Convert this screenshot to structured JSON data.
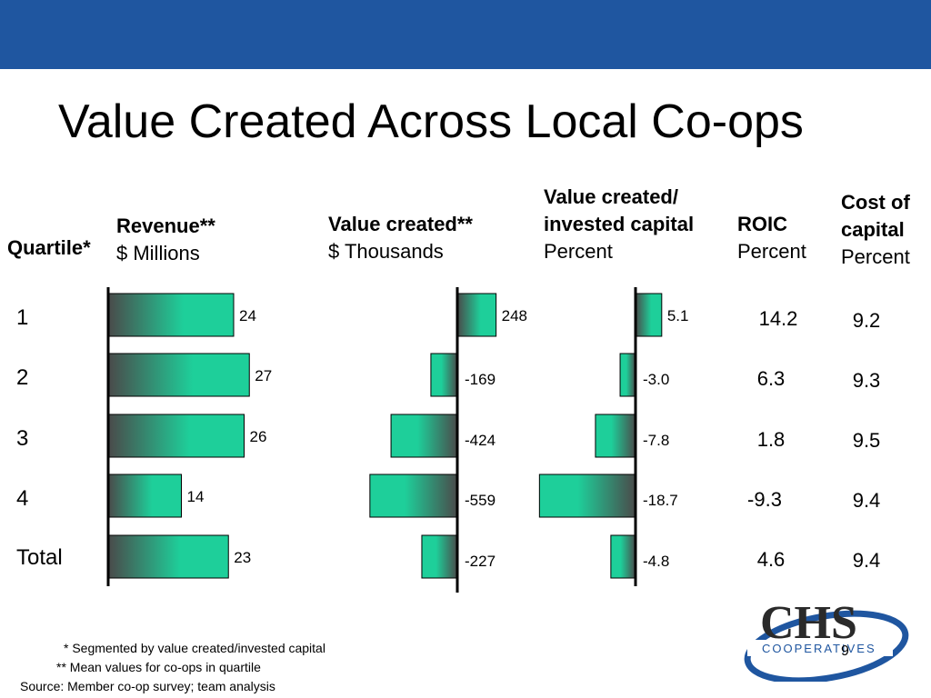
{
  "title": "Value Created Across Local Co-ops",
  "headers": {
    "quartile": "Quartile*",
    "revenue": {
      "name": "Revenue**",
      "unit": "$ Millions"
    },
    "value_created": {
      "name": "Value created**",
      "unit": "$ Thousands"
    },
    "vc_invested": {
      "name1": "Value created/",
      "name2": "invested capital",
      "unit": "Percent"
    },
    "roic": {
      "name": "ROIC",
      "unit": "Percent"
    },
    "cost_of_capital": {
      "name1": "Cost of",
      "name2": "capital",
      "unit": "Percent"
    }
  },
  "chart_data": [
    {
      "type": "bar",
      "categories": [
        "1",
        "2",
        "3",
        "4",
        "Total"
      ],
      "values": [
        24,
        27,
        26,
        14,
        23
      ],
      "labels": [
        "24",
        "27",
        "26",
        "14",
        "23"
      ]
    },
    {
      "type": "bar",
      "categories": [
        "1",
        "2",
        "3",
        "4",
        "Total"
      ],
      "values": [
        248,
        -169,
        -424,
        -559,
        -227
      ],
      "labels": [
        "248",
        "-169",
        "-424",
        "-559",
        "-227"
      ]
    },
    {
      "type": "bar",
      "categories": [
        "1",
        "2",
        "3",
        "4",
        "Total"
      ],
      "values": [
        5.1,
        -3.0,
        -7.8,
        -18.7,
        -4.8
      ],
      "labels": [
        "5.1",
        "-3.0",
        "-7.8",
        "-18.7",
        "-4.8"
      ]
    },
    {
      "type": "table",
      "categories": [
        "1",
        "2",
        "3",
        "4",
        "Total"
      ],
      "roic": [
        "14.2",
        "6.3",
        "1.8",
        "-9.3",
        "4.6"
      ],
      "cost_of_capital": [
        "9.2",
        "9.3",
        "9.5",
        "9.4",
        "9.4"
      ]
    }
  ],
  "colors": {
    "topbar": "#1f56a0",
    "bar_dark": "#4a4a4a",
    "bar_light": "#1ecf9a"
  },
  "footnotes": {
    "f1": "* Segmented by value created/invested capital",
    "f2": "** Mean values for co-ops in quartile",
    "source": "Source: Member co-op survey; team analysis"
  },
  "logo": {
    "name": "CHS",
    "sub": "COOPERATIVES"
  },
  "page_number": "9"
}
